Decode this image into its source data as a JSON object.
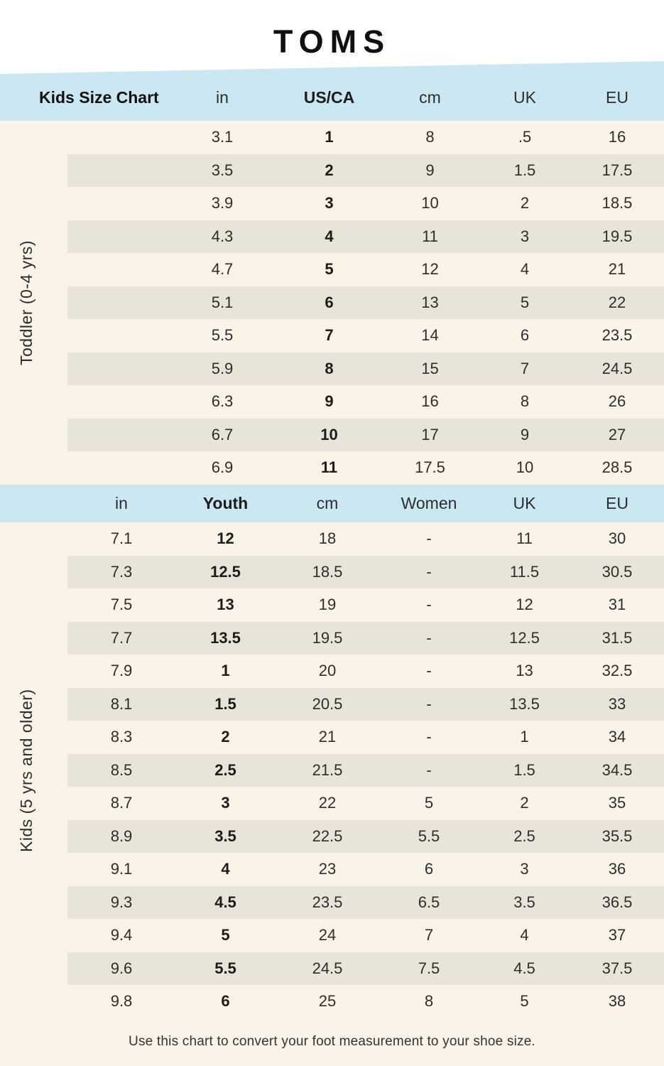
{
  "brand": {
    "logo_text": "TOMS"
  },
  "colors": {
    "cream": "#f9f4e7",
    "stripe": "#e8e4d8",
    "blue": "#cbe8f2",
    "paper": "#ffffff",
    "ink": "#2d2d2d"
  },
  "chart_data": [
    {
      "type": "table",
      "title": "Kids Size Chart",
      "section_label": "Toddler (0-4 yrs)",
      "columns": [
        "in",
        "US/CA",
        "cm",
        "UK",
        "EU"
      ],
      "bold_column": "US/CA",
      "rows": [
        [
          "3.1",
          "1",
          "8",
          ".5",
          "16"
        ],
        [
          "3.5",
          "2",
          "9",
          "1.5",
          "17.5"
        ],
        [
          "3.9",
          "3",
          "10",
          "2",
          "18.5"
        ],
        [
          "4.3",
          "4",
          "11",
          "3",
          "19.5"
        ],
        [
          "4.7",
          "5",
          "12",
          "4",
          "21"
        ],
        [
          "5.1",
          "6",
          "13",
          "5",
          "22"
        ],
        [
          "5.5",
          "7",
          "14",
          "6",
          "23.5"
        ],
        [
          "5.9",
          "8",
          "15",
          "7",
          "24.5"
        ],
        [
          "6.3",
          "9",
          "16",
          "8",
          "26"
        ],
        [
          "6.7",
          "10",
          "17",
          "9",
          "27"
        ],
        [
          "6.9",
          "11",
          "17.5",
          "10",
          "28.5"
        ]
      ]
    },
    {
      "type": "table",
      "title": "",
      "section_label": "Kids (5 yrs and older)",
      "columns": [
        "in",
        "Youth",
        "cm",
        "Women",
        "UK",
        "EU"
      ],
      "bold_column": "Youth",
      "rows": [
        [
          "7.1",
          "12",
          "18",
          "-",
          "11",
          "30"
        ],
        [
          "7.3",
          "12.5",
          "18.5",
          "-",
          "11.5",
          "30.5"
        ],
        [
          "7.5",
          "13",
          "19",
          "-",
          "12",
          "31"
        ],
        [
          "7.7",
          "13.5",
          "19.5",
          "-",
          "12.5",
          "31.5"
        ],
        [
          "7.9",
          "1",
          "20",
          "-",
          "13",
          "32.5"
        ],
        [
          "8.1",
          "1.5",
          "20.5",
          "-",
          "13.5",
          "33"
        ],
        [
          "8.3",
          "2",
          "21",
          "-",
          "1",
          "34"
        ],
        [
          "8.5",
          "2.5",
          "21.5",
          "-",
          "1.5",
          "34.5"
        ],
        [
          "8.7",
          "3",
          "22",
          "5",
          "2",
          "35"
        ],
        [
          "8.9",
          "3.5",
          "22.5",
          "5.5",
          "2.5",
          "35.5"
        ],
        [
          "9.1",
          "4",
          "23",
          "6",
          "3",
          "36"
        ],
        [
          "9.3",
          "4.5",
          "23.5",
          "6.5",
          "3.5",
          "36.5"
        ],
        [
          "9.4",
          "5",
          "24",
          "7",
          "4",
          "37"
        ],
        [
          "9.6",
          "5.5",
          "24.5",
          "7.5",
          "4.5",
          "37.5"
        ],
        [
          "9.8",
          "6",
          "25",
          "8",
          "5",
          "38"
        ]
      ]
    }
  ],
  "footer_note": "Use this chart to convert your foot measurement to your shoe size."
}
